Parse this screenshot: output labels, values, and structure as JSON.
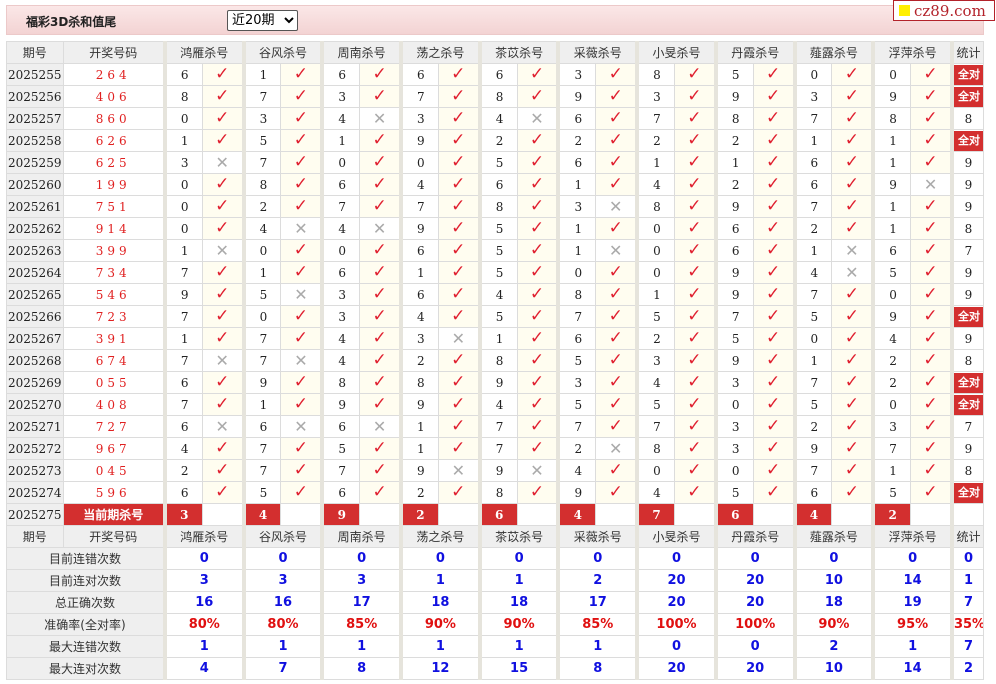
{
  "header": {
    "title": "福彩3D杀和值尾",
    "period_select": "近20期",
    "logo": "cz89.com"
  },
  "colors": {
    "accent": "#d32f2f",
    "check": "#e02030",
    "cross": "#aaaaaa",
    "stat_value": "#1010e0",
    "rate_value": "#e01010"
  },
  "columns": {
    "period": "期号",
    "draw": "开奖号码",
    "experts": [
      "鸿雁杀号",
      "谷风杀号",
      "周南杀号",
      "荡之杀号",
      "茶苡杀号",
      "采薇杀号",
      "小旻杀号",
      "丹霞杀号",
      "薤露杀号",
      "浮萍杀号"
    ],
    "stat": "统计"
  },
  "marks": {
    "check": "✓",
    "cross": "✕"
  },
  "rows": [
    {
      "period": "2025255",
      "draw": "264",
      "picks": [
        [
          6,
          1
        ],
        [
          1,
          1
        ],
        [
          6,
          1
        ],
        [
          6,
          1
        ],
        [
          6,
          1
        ],
        [
          3,
          1
        ],
        [
          8,
          1
        ],
        [
          5,
          1
        ],
        [
          0,
          1
        ],
        [
          0,
          1
        ]
      ],
      "stat": "全对"
    },
    {
      "period": "2025256",
      "draw": "406",
      "picks": [
        [
          8,
          1
        ],
        [
          7,
          1
        ],
        [
          3,
          1
        ],
        [
          7,
          1
        ],
        [
          8,
          1
        ],
        [
          9,
          1
        ],
        [
          3,
          1
        ],
        [
          9,
          1
        ],
        [
          3,
          1
        ],
        [
          9,
          1
        ]
      ],
      "stat": "全对"
    },
    {
      "period": "2025257",
      "draw": "860",
      "picks": [
        [
          0,
          1
        ],
        [
          3,
          1
        ],
        [
          4,
          0
        ],
        [
          3,
          1
        ],
        [
          4,
          0
        ],
        [
          6,
          1
        ],
        [
          7,
          1
        ],
        [
          8,
          1
        ],
        [
          7,
          1
        ],
        [
          8,
          1
        ]
      ],
      "stat": "8"
    },
    {
      "period": "2025258",
      "draw": "626",
      "picks": [
        [
          1,
          1
        ],
        [
          5,
          1
        ],
        [
          1,
          1
        ],
        [
          9,
          1
        ],
        [
          2,
          1
        ],
        [
          2,
          1
        ],
        [
          2,
          1
        ],
        [
          2,
          1
        ],
        [
          1,
          1
        ],
        [
          1,
          1
        ]
      ],
      "stat": "全对"
    },
    {
      "period": "2025259",
      "draw": "625",
      "picks": [
        [
          3,
          0
        ],
        [
          7,
          1
        ],
        [
          0,
          1
        ],
        [
          0,
          1
        ],
        [
          5,
          1
        ],
        [
          6,
          1
        ],
        [
          1,
          1
        ],
        [
          1,
          1
        ],
        [
          6,
          1
        ],
        [
          1,
          1
        ]
      ],
      "stat": "9"
    },
    {
      "period": "2025260",
      "draw": "199",
      "picks": [
        [
          0,
          1
        ],
        [
          8,
          1
        ],
        [
          6,
          1
        ],
        [
          4,
          1
        ],
        [
          6,
          1
        ],
        [
          1,
          1
        ],
        [
          4,
          1
        ],
        [
          2,
          1
        ],
        [
          6,
          1
        ],
        [
          9,
          0
        ]
      ],
      "stat": "9"
    },
    {
      "period": "2025261",
      "draw": "751",
      "picks": [
        [
          0,
          1
        ],
        [
          2,
          1
        ],
        [
          7,
          1
        ],
        [
          7,
          1
        ],
        [
          8,
          1
        ],
        [
          3,
          0
        ],
        [
          8,
          1
        ],
        [
          9,
          1
        ],
        [
          7,
          1
        ],
        [
          1,
          1
        ]
      ],
      "stat": "9"
    },
    {
      "period": "2025262",
      "draw": "914",
      "picks": [
        [
          0,
          1
        ],
        [
          4,
          0
        ],
        [
          4,
          0
        ],
        [
          9,
          1
        ],
        [
          5,
          1
        ],
        [
          1,
          1
        ],
        [
          0,
          1
        ],
        [
          6,
          1
        ],
        [
          2,
          1
        ],
        [
          1,
          1
        ]
      ],
      "stat": "8"
    },
    {
      "period": "2025263",
      "draw": "399",
      "picks": [
        [
          1,
          0
        ],
        [
          0,
          1
        ],
        [
          0,
          1
        ],
        [
          6,
          1
        ],
        [
          5,
          1
        ],
        [
          1,
          0
        ],
        [
          0,
          1
        ],
        [
          6,
          1
        ],
        [
          1,
          0
        ],
        [
          6,
          1
        ]
      ],
      "stat": "7"
    },
    {
      "period": "2025264",
      "draw": "734",
      "picks": [
        [
          7,
          1
        ],
        [
          1,
          1
        ],
        [
          6,
          1
        ],
        [
          1,
          1
        ],
        [
          5,
          1
        ],
        [
          0,
          1
        ],
        [
          0,
          1
        ],
        [
          9,
          1
        ],
        [
          4,
          0
        ],
        [
          5,
          1
        ]
      ],
      "stat": "9"
    },
    {
      "period": "2025265",
      "draw": "546",
      "picks": [
        [
          9,
          1
        ],
        [
          5,
          0
        ],
        [
          3,
          1
        ],
        [
          6,
          1
        ],
        [
          4,
          1
        ],
        [
          8,
          1
        ],
        [
          1,
          1
        ],
        [
          9,
          1
        ],
        [
          7,
          1
        ],
        [
          0,
          1
        ]
      ],
      "stat": "9"
    },
    {
      "period": "2025266",
      "draw": "723",
      "picks": [
        [
          7,
          1
        ],
        [
          0,
          1
        ],
        [
          3,
          1
        ],
        [
          4,
          1
        ],
        [
          5,
          1
        ],
        [
          7,
          1
        ],
        [
          5,
          1
        ],
        [
          7,
          1
        ],
        [
          5,
          1
        ],
        [
          9,
          1
        ]
      ],
      "stat": "全对"
    },
    {
      "period": "2025267",
      "draw": "391",
      "picks": [
        [
          1,
          1
        ],
        [
          7,
          1
        ],
        [
          4,
          1
        ],
        [
          3,
          0
        ],
        [
          1,
          1
        ],
        [
          6,
          1
        ],
        [
          2,
          1
        ],
        [
          5,
          1
        ],
        [
          0,
          1
        ],
        [
          4,
          1
        ]
      ],
      "stat": "9"
    },
    {
      "period": "2025268",
      "draw": "674",
      "picks": [
        [
          7,
          0
        ],
        [
          7,
          0
        ],
        [
          4,
          1
        ],
        [
          2,
          1
        ],
        [
          8,
          1
        ],
        [
          5,
          1
        ],
        [
          3,
          1
        ],
        [
          9,
          1
        ],
        [
          1,
          1
        ],
        [
          2,
          1
        ]
      ],
      "stat": "8"
    },
    {
      "period": "2025269",
      "draw": "055",
      "picks": [
        [
          6,
          1
        ],
        [
          9,
          1
        ],
        [
          8,
          1
        ],
        [
          8,
          1
        ],
        [
          9,
          1
        ],
        [
          3,
          1
        ],
        [
          4,
          1
        ],
        [
          3,
          1
        ],
        [
          7,
          1
        ],
        [
          2,
          1
        ]
      ],
      "stat": "全对"
    },
    {
      "period": "2025270",
      "draw": "408",
      "picks": [
        [
          7,
          1
        ],
        [
          1,
          1
        ],
        [
          9,
          1
        ],
        [
          9,
          1
        ],
        [
          4,
          1
        ],
        [
          5,
          1
        ],
        [
          5,
          1
        ],
        [
          0,
          1
        ],
        [
          5,
          1
        ],
        [
          0,
          1
        ]
      ],
      "stat": "全对"
    },
    {
      "period": "2025271",
      "draw": "727",
      "picks": [
        [
          6,
          0
        ],
        [
          6,
          0
        ],
        [
          6,
          0
        ],
        [
          1,
          1
        ],
        [
          7,
          1
        ],
        [
          7,
          1
        ],
        [
          7,
          1
        ],
        [
          3,
          1
        ],
        [
          2,
          1
        ],
        [
          3,
          1
        ]
      ],
      "stat": "7"
    },
    {
      "period": "2025272",
      "draw": "967",
      "picks": [
        [
          4,
          1
        ],
        [
          7,
          1
        ],
        [
          5,
          1
        ],
        [
          1,
          1
        ],
        [
          7,
          1
        ],
        [
          2,
          0
        ],
        [
          8,
          1
        ],
        [
          3,
          1
        ],
        [
          9,
          1
        ],
        [
          7,
          1
        ]
      ],
      "stat": "9"
    },
    {
      "period": "2025273",
      "draw": "045",
      "picks": [
        [
          2,
          1
        ],
        [
          7,
          1
        ],
        [
          7,
          1
        ],
        [
          9,
          0
        ],
        [
          9,
          0
        ],
        [
          4,
          1
        ],
        [
          0,
          1
        ],
        [
          0,
          1
        ],
        [
          7,
          1
        ],
        [
          1,
          1
        ]
      ],
      "stat": "8"
    },
    {
      "period": "2025274",
      "draw": "596",
      "picks": [
        [
          6,
          1
        ],
        [
          5,
          1
        ],
        [
          6,
          1
        ],
        [
          2,
          1
        ],
        [
          8,
          1
        ],
        [
          9,
          1
        ],
        [
          4,
          1
        ],
        [
          5,
          1
        ],
        [
          6,
          1
        ],
        [
          5,
          1
        ]
      ],
      "stat": "全对"
    }
  ],
  "current": {
    "period": "2025275",
    "label": "当前期杀号",
    "kills": [
      3,
      4,
      9,
      2,
      6,
      4,
      7,
      6,
      4,
      2
    ]
  },
  "stats": [
    {
      "label": "目前连错次数",
      "values": [
        "0",
        "0",
        "0",
        "0",
        "0",
        "0",
        "0",
        "0",
        "0",
        "0",
        "0"
      ]
    },
    {
      "label": "目前连对次数",
      "values": [
        "3",
        "3",
        "3",
        "1",
        "1",
        "2",
        "20",
        "20",
        "10",
        "14",
        "1"
      ]
    },
    {
      "label": "总正确次数",
      "values": [
        "16",
        "16",
        "17",
        "18",
        "18",
        "17",
        "20",
        "20",
        "18",
        "19",
        "7"
      ]
    },
    {
      "label": "准确率(全对率)",
      "values": [
        "80%",
        "80%",
        "85%",
        "90%",
        "90%",
        "85%",
        "100%",
        "100%",
        "90%",
        "95%",
        "35%"
      ],
      "rate": true
    },
    {
      "label": "最大连错次数",
      "values": [
        "1",
        "1",
        "1",
        "1",
        "1",
        "1",
        "0",
        "0",
        "2",
        "1",
        "7"
      ]
    },
    {
      "label": "最大连对次数",
      "values": [
        "4",
        "7",
        "8",
        "12",
        "15",
        "8",
        "20",
        "20",
        "10",
        "14",
        "2"
      ]
    }
  ]
}
